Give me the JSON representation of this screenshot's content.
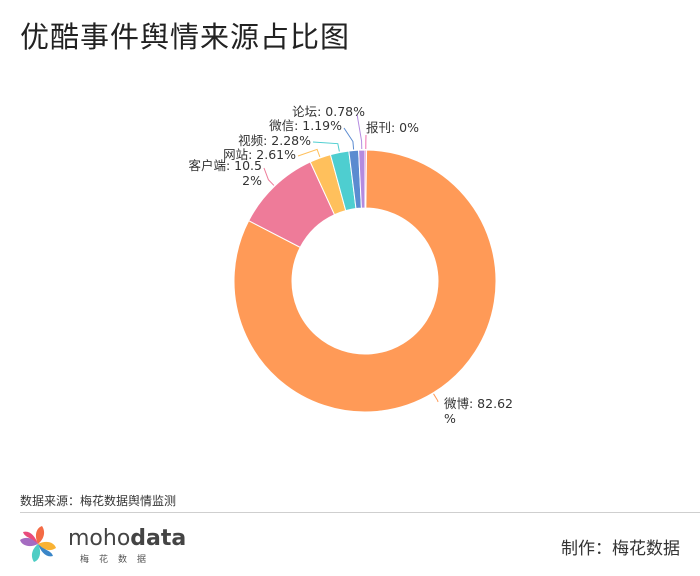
{
  "title": "优酷事件舆情来源占比图",
  "chart_data": {
    "type": "pie",
    "donut": true,
    "slices": [
      {
        "name": "微博",
        "value": 82.62,
        "label_lines": [
          "微博: 82.62",
          "%"
        ],
        "color": "#FF9A57"
      },
      {
        "name": "客户端",
        "value": 10.52,
        "label_lines": [
          "客户端: 10.5",
          "2%"
        ],
        "color": "#EE7B99"
      },
      {
        "name": "网站",
        "value": 2.61,
        "label_lines": [
          "网站: 2.61%"
        ],
        "color": "#FFC05C"
      },
      {
        "name": "视频",
        "value": 2.28,
        "label_lines": [
          "视频: 2.28%"
        ],
        "color": "#4ECED0"
      },
      {
        "name": "微信",
        "value": 1.19,
        "label_lines": [
          "微信: 1.19%"
        ],
        "color": "#5B8BD0"
      },
      {
        "name": "论坛",
        "value": 0.78,
        "label_lines": [
          "论坛: 0.78%"
        ],
        "color": "#B48BE0"
      },
      {
        "name": "报刊",
        "value": 0,
        "label_lines": [
          "报刊: 0%"
        ],
        "color": "#F06EB0"
      }
    ]
  },
  "footer": {
    "source": "数据来源：梅花数据舆情监测",
    "credit": "制作：梅花数据",
    "logo_text_light": "moho",
    "logo_text_bold": "data",
    "logo_sub": "梅花数据"
  }
}
